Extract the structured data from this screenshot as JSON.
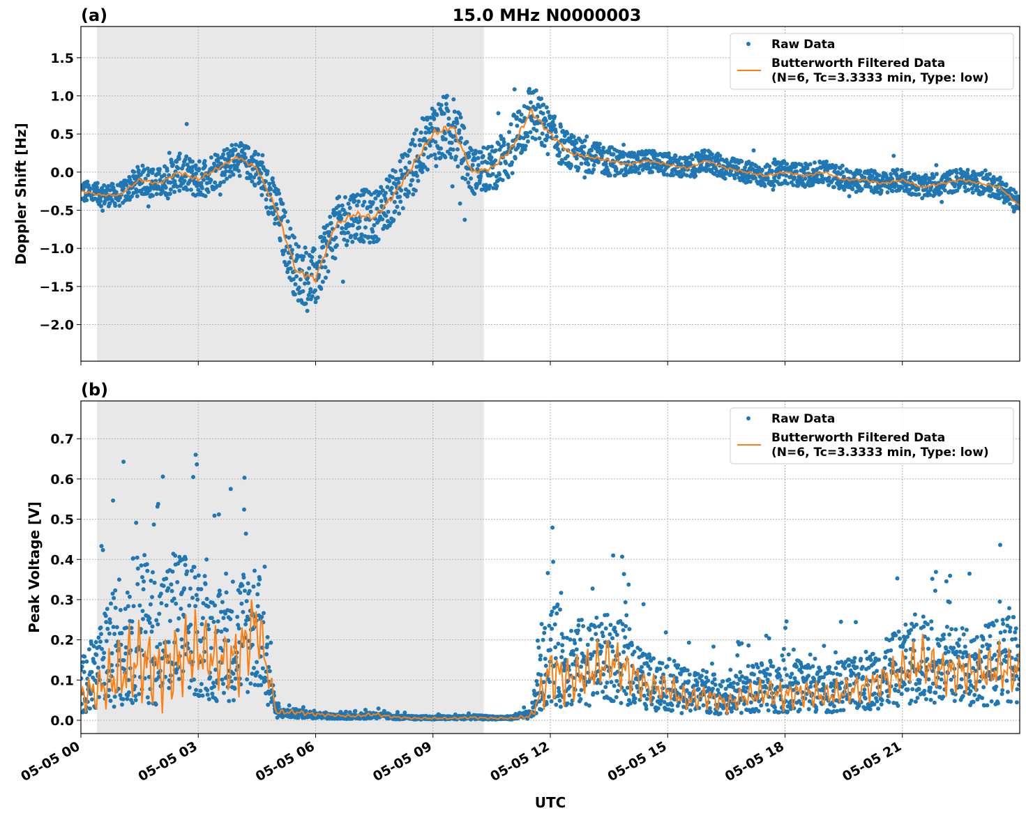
{
  "chart_data": {
    "title": "15.0 MHz N0000003",
    "xlabel": "UTC",
    "x_unit": "hours UTC on 05-05",
    "xlim": [
      0,
      24
    ],
    "xticks": [
      0,
      3,
      6,
      9,
      12,
      15,
      18,
      21
    ],
    "xtick_labels": [
      "05-05 00",
      "05-05 03",
      "05-05 06",
      "05-05 09",
      "05-05 12",
      "05-05 15",
      "05-05 18",
      "05-05 21"
    ],
    "grid": true,
    "shaded_span_hours": [
      0.41,
      10.3
    ],
    "colors": {
      "raw": "#1f77b4",
      "filtered": "#ff7f0e",
      "shade": "#e8e8e8"
    },
    "panels": [
      {
        "label": "(a)",
        "type": "scatter+line",
        "ylabel": "Doppler Shift [Hz]",
        "ylim": [
          -2.48,
          1.91
        ],
        "yticks": [
          -2.0,
          -1.5,
          -1.0,
          -0.5,
          0.0,
          0.5,
          1.0,
          1.5
        ],
        "ytick_labels": [
          "−2.0",
          "−1.5",
          "−1.0",
          "−0.5",
          "0.0",
          "0.5",
          "1.0",
          "1.5"
        ],
        "legend": {
          "placement": "top-right",
          "entries": [
            "Raw Data",
            "Butterworth Filtered Data",
            "(N=6, Tc=3.3333 min, Type: low)"
          ]
        },
        "x_hours_step": 0.5,
        "filtered": [
          -0.25,
          -0.3,
          -0.3,
          -0.1,
          -0.15,
          0.0,
          -0.1,
          0.05,
          0.2,
          0.05,
          -0.5,
          -1.3,
          -1.4,
          -0.7,
          -0.55,
          -0.6,
          -0.3,
          0.1,
          0.5,
          0.6,
          0.0,
          0.05,
          0.3,
          0.8,
          0.5,
          0.25,
          0.2,
          0.15,
          0.1,
          0.15,
          0.1,
          0.05,
          0.15,
          0.05,
          0.0,
          -0.05,
          0.0,
          -0.05,
          0.0,
          -0.1,
          -0.1,
          -0.15,
          -0.1,
          -0.2,
          -0.15,
          -0.1,
          -0.15,
          -0.2,
          -0.45
        ],
        "raw_spread": [
          0.15,
          0.15,
          0.15,
          0.2,
          0.2,
          0.25,
          0.25,
          0.25,
          0.2,
          0.25,
          0.35,
          0.4,
          0.4,
          0.35,
          0.35,
          0.35,
          0.35,
          0.4,
          0.45,
          0.45,
          0.3,
          0.3,
          0.4,
          0.4,
          0.3,
          0.25,
          0.2,
          0.2,
          0.15,
          0.15,
          0.15,
          0.15,
          0.15,
          0.15,
          0.15,
          0.15,
          0.15,
          0.15,
          0.15,
          0.15,
          0.15,
          0.15,
          0.15,
          0.15,
          0.15,
          0.15,
          0.15,
          0.15,
          0.15
        ]
      },
      {
        "label": "(b)",
        "type": "scatter+line",
        "ylabel": "Peak Voltage [V]",
        "ylim": [
          -0.033,
          0.794
        ],
        "yticks": [
          0.0,
          0.1,
          0.2,
          0.3,
          0.4,
          0.5,
          0.6,
          0.7
        ],
        "ytick_labels": [
          "0.0",
          "0.1",
          "0.2",
          "0.3",
          "0.4",
          "0.5",
          "0.6",
          "0.7"
        ],
        "legend": {
          "placement": "top-right",
          "entries": [
            "Raw Data",
            "Butterworth Filtered Data",
            "(N=6, Tc=3.3333 min, Type: low)"
          ]
        },
        "x_hours_step": 0.5,
        "filtered": [
          0.06,
          0.08,
          0.12,
          0.15,
          0.12,
          0.15,
          0.18,
          0.15,
          0.15,
          0.25,
          0.02,
          0.02,
          0.015,
          0.012,
          0.01,
          0.015,
          0.008,
          0.005,
          0.005,
          0.005,
          0.007,
          0.005,
          0.005,
          0.01,
          0.12,
          0.1,
          0.12,
          0.15,
          0.12,
          0.08,
          0.08,
          0.05,
          0.06,
          0.04,
          0.06,
          0.07,
          0.06,
          0.07,
          0.06,
          0.07,
          0.08,
          0.1,
          0.12,
          0.15,
          0.12,
          0.12,
          0.12,
          0.13,
          0.12
        ],
        "raw_spread": [
          0.12,
          0.2,
          0.3,
          0.35,
          0.3,
          0.35,
          0.3,
          0.25,
          0.3,
          0.3,
          0.02,
          0.02,
          0.015,
          0.01,
          0.01,
          0.015,
          0.01,
          0.008,
          0.008,
          0.008,
          0.01,
          0.008,
          0.008,
          0.02,
          0.25,
          0.2,
          0.2,
          0.2,
          0.18,
          0.12,
          0.12,
          0.1,
          0.1,
          0.08,
          0.1,
          0.12,
          0.12,
          0.12,
          0.1,
          0.12,
          0.12,
          0.15,
          0.18,
          0.2,
          0.18,
          0.18,
          0.18,
          0.2,
          0.2
        ]
      }
    ]
  }
}
